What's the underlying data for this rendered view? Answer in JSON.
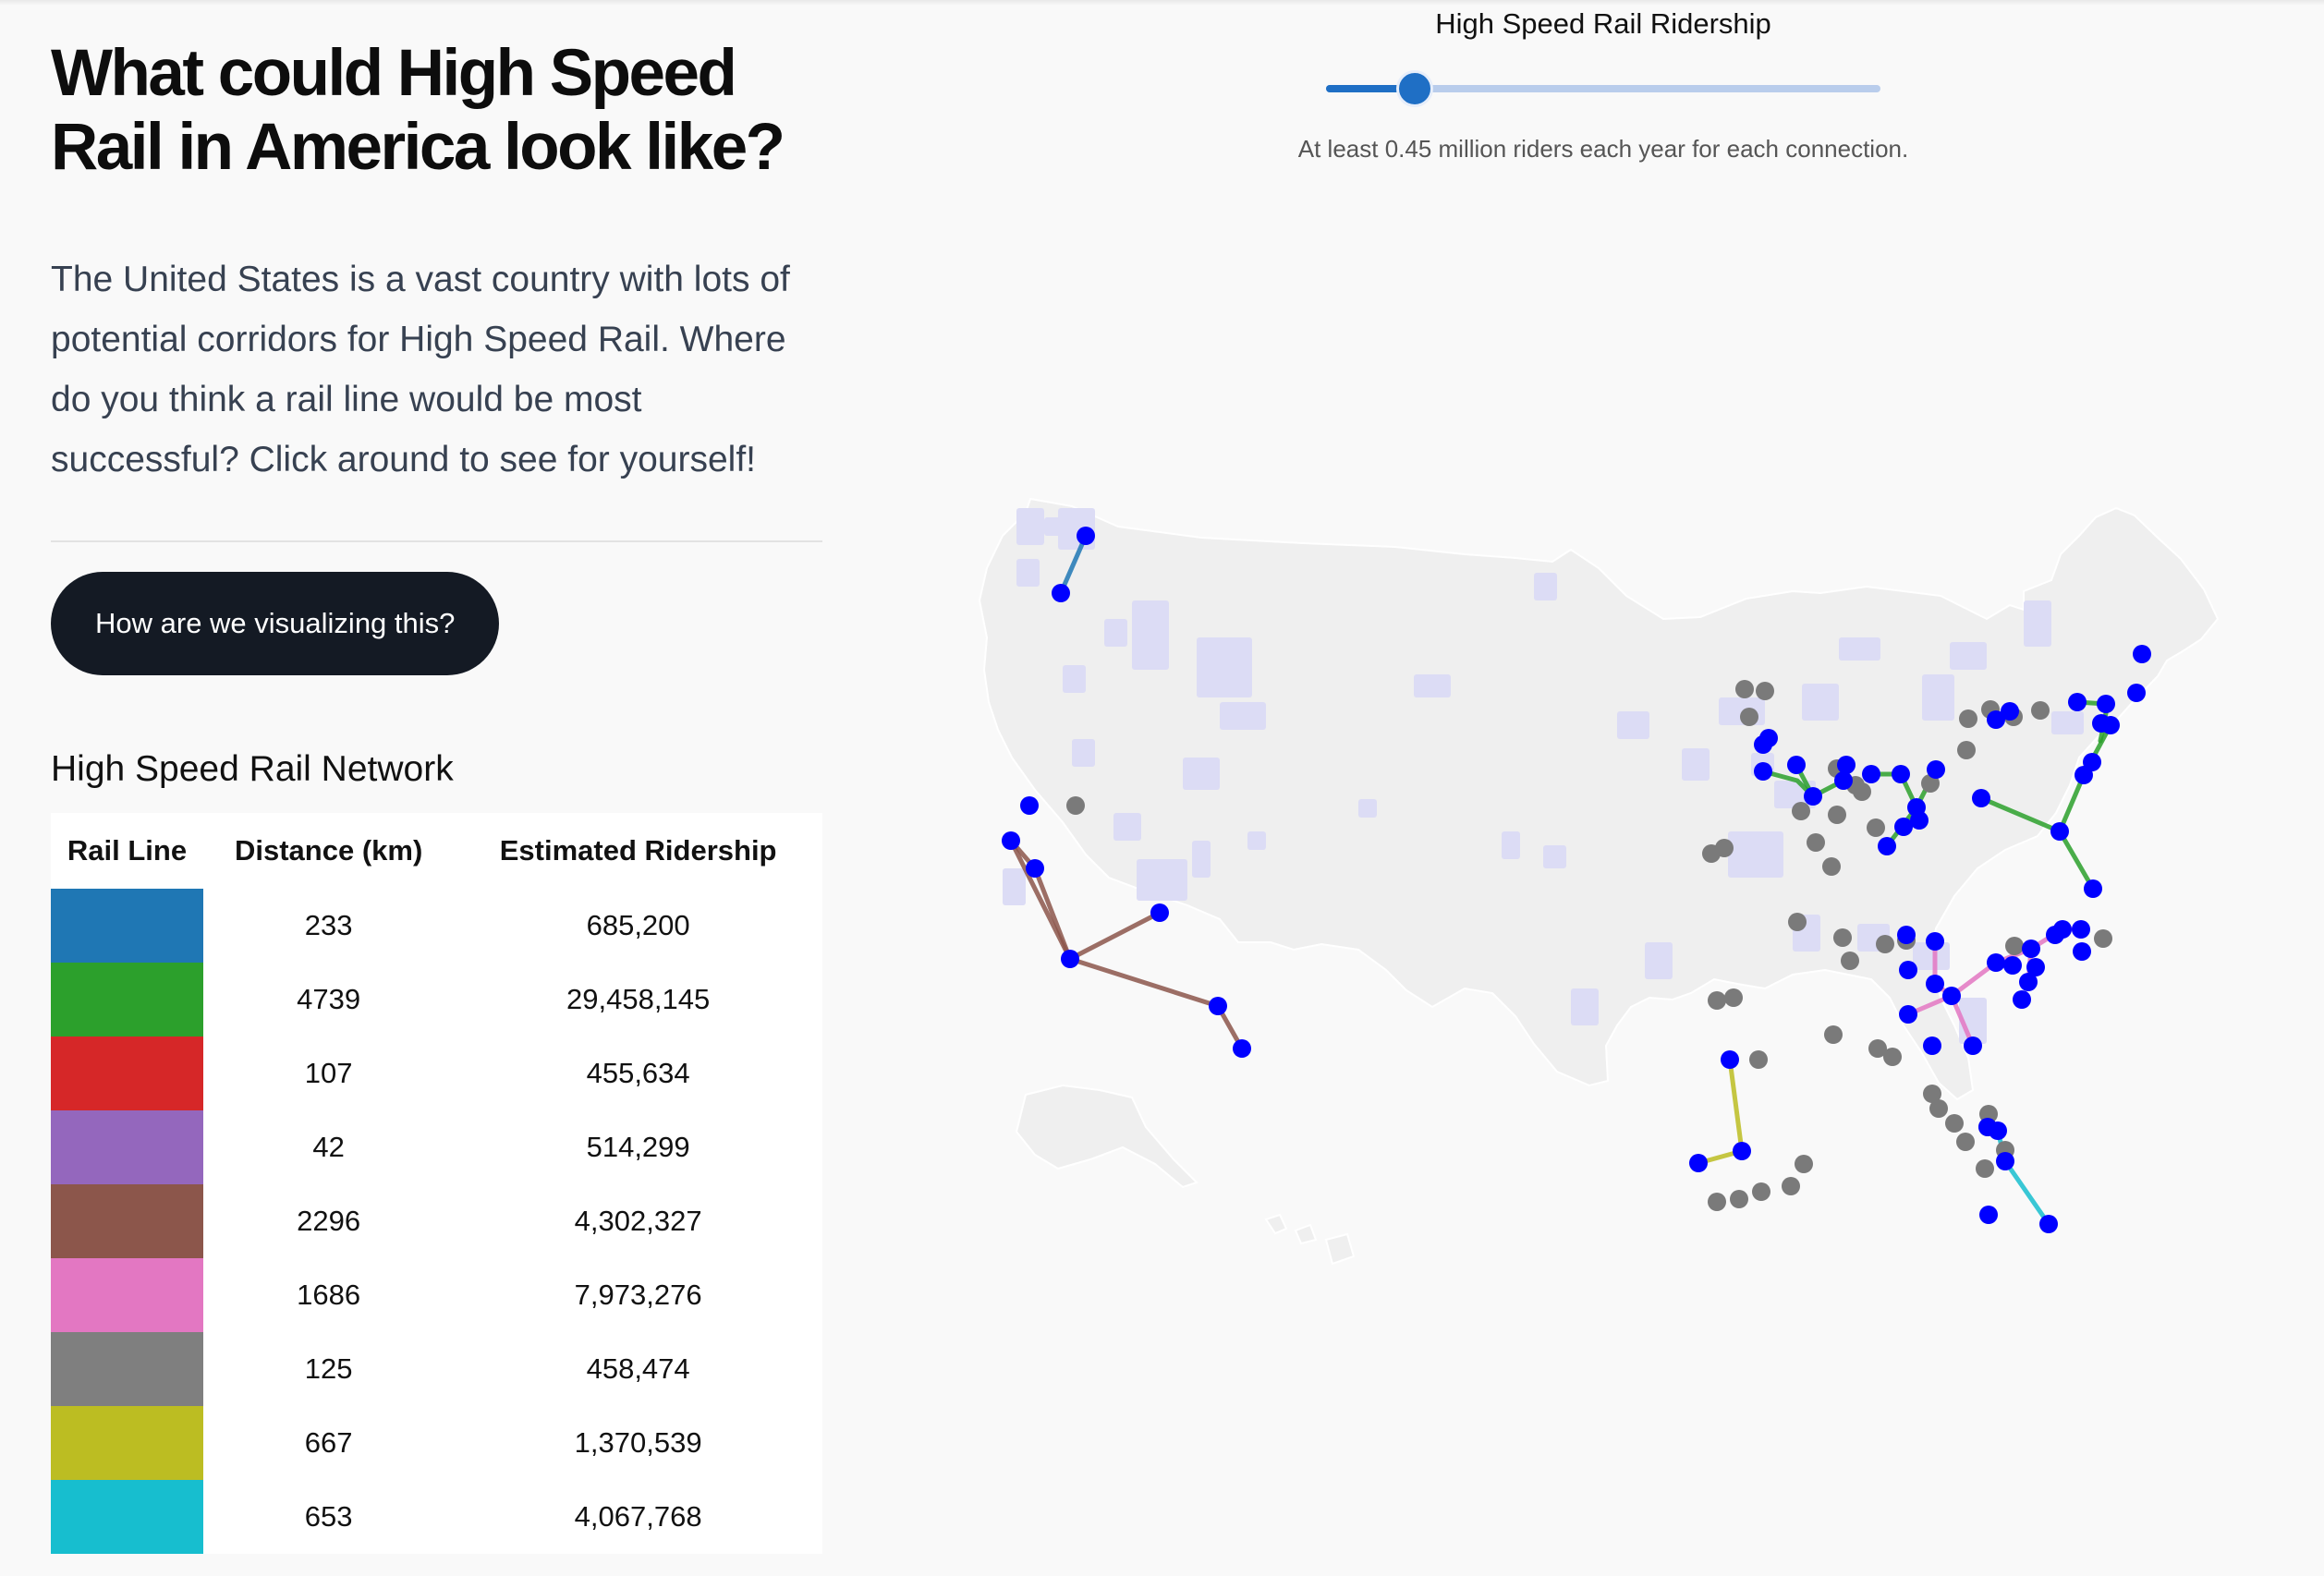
{
  "page": {
    "title": "What could High Speed Rail in America look like?",
    "intro": "The United States is a vast country with lots of potential corridors for High Speed Rail. Where do you think a rail line would be most successful? Click around to see for yourself!",
    "viz_button_label": "How are we visualizing this?"
  },
  "slider": {
    "label": "High Speed Rail Ridership",
    "value_fraction": 0.16,
    "description": "At least 0.45 million riders each year for each connection."
  },
  "network": {
    "title": "High Speed Rail Network",
    "columns": [
      "Rail Line",
      "Distance (km)",
      "Estimated Ridership"
    ],
    "rows": [
      {
        "color": "#1f77b4",
        "distance": "233",
        "ridership": "685,200"
      },
      {
        "color": "#2ca02c",
        "distance": "4739",
        "ridership": "29,458,145"
      },
      {
        "color": "#d62728",
        "distance": "107",
        "ridership": "455,634"
      },
      {
        "color": "#9467bd",
        "distance": "42",
        "ridership": "514,299"
      },
      {
        "color": "#8c564b",
        "distance": "2296",
        "ridership": "4,302,327"
      },
      {
        "color": "#e377c2",
        "distance": "1686",
        "ridership": "7,973,276"
      },
      {
        "color": "#7f7f7f",
        "distance": "125",
        "ridership": "458,474"
      },
      {
        "color": "#bcbd22",
        "distance": "667",
        "ridership": "1,370,539"
      },
      {
        "color": "#17becf",
        "distance": "653",
        "ridership": "4,067,768"
      }
    ]
  },
  "map": {
    "land_color": "#efefef",
    "county_highlight_color": "#dcdcf5",
    "connected_city_color": "#0000ff",
    "unconnected_city_color": "#7a7a7a"
  }
}
